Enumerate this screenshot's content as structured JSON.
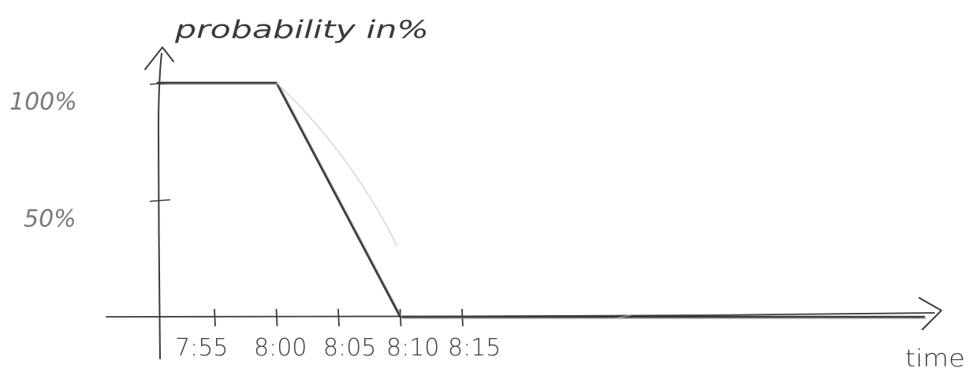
{
  "chart_data": {
    "type": "line",
    "title": "",
    "xlabel": "time",
    "ylabel": "probability in%",
    "x_ticks": [
      "7:55",
      "8:00",
      "8:05",
      "8:10",
      "8:15"
    ],
    "y_ticks": [
      "100%",
      "50%"
    ],
    "ylim": [
      0,
      100
    ],
    "series": [
      {
        "x": [
          "7:50",
          "7:55",
          "8:00",
          "8:10",
          "8:15",
          "8:45"
        ],
        "values": [
          100,
          100,
          100,
          0,
          0,
          0
        ]
      }
    ],
    "grid": false,
    "legend": "none"
  },
  "colors": {
    "ink": "#3a3a3a",
    "faint_ink": "#8a8a8a"
  }
}
